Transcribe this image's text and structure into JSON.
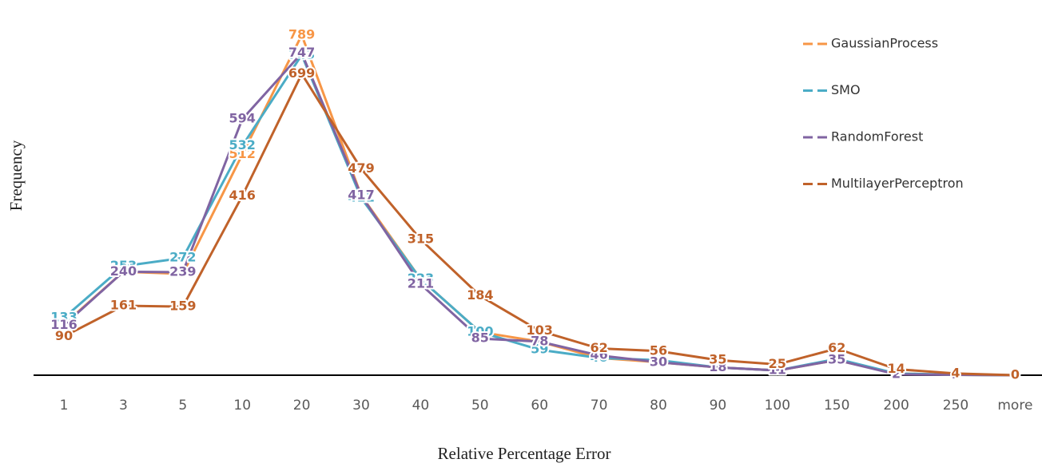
{
  "chart_data": {
    "type": "line",
    "x_label": "Relative Percentage Error",
    "y_label": "Frequency",
    "categories": [
      "1",
      "3",
      "5",
      "10",
      "20",
      "30",
      "40",
      "50",
      "60",
      "70",
      "80",
      "90",
      "100",
      "150",
      "200",
      "250",
      "more"
    ],
    "ylim": [
      0,
      800
    ],
    "series": [
      {
        "name": "GaussianProcess",
        "color": "#f79646",
        "values": [
          118,
          240,
          235,
          512,
          789,
          417,
          223,
          100,
          78,
          40,
          30,
          18,
          11,
          35,
          4,
          1,
          0
        ]
      },
      {
        "name": "SMO",
        "color": "#4bacc6",
        "values": [
          133,
          253,
          272,
          532,
          743,
          411,
          223,
          100,
          59,
          40,
          35,
          18,
          11,
          38,
          4,
          1,
          0
        ]
      },
      {
        "name": "RandomForest",
        "color": "#8064a2",
        "values": [
          116,
          240,
          239,
          594,
          747,
          417,
          211,
          85,
          78,
          46,
          30,
          18,
          11,
          35,
          2,
          1,
          0
        ]
      },
      {
        "name": "MultilayerPerceptron",
        "color": "#c0622a",
        "values": [
          90,
          161,
          159,
          416,
          699,
          479,
          315,
          184,
          103,
          62,
          56,
          35,
          25,
          62,
          14,
          4,
          0
        ]
      }
    ]
  }
}
